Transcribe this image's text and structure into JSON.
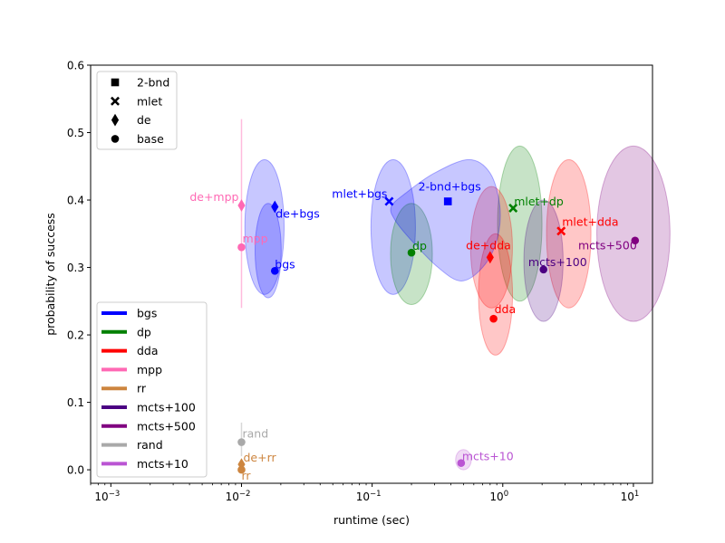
{
  "chart_data": {
    "type": "scatter",
    "title": "",
    "xlabel": "runtime (sec)",
    "ylabel": "probability of success",
    "xscale": "log",
    "xlim": [
      0.0007,
      14
    ],
    "ylim": [
      -0.02,
      0.6
    ],
    "xticks": [
      {
        "value": 0.001,
        "label": "10",
        "exp": "−3"
      },
      {
        "value": 0.01,
        "label": "10",
        "exp": "−2"
      },
      {
        "value": 0.1,
        "label": "10",
        "exp": "−1"
      },
      {
        "value": 1,
        "label": "10",
        "exp": "0"
      },
      {
        "value": 10,
        "label": "10",
        "exp": "1"
      }
    ],
    "yticks": [
      {
        "value": 0.0,
        "label": "0.0"
      },
      {
        "value": 0.1,
        "label": "0.1"
      },
      {
        "value": 0.2,
        "label": "0.2"
      },
      {
        "value": 0.3,
        "label": "0.3"
      },
      {
        "value": 0.4,
        "label": "0.4"
      },
      {
        "value": 0.5,
        "label": "0.5"
      },
      {
        "value": 0.6,
        "label": "0.6"
      }
    ],
    "marker_legend": {
      "placement": "top-left",
      "items": [
        {
          "marker": "square",
          "label": "2-bnd"
        },
        {
          "marker": "x",
          "label": "mlet"
        },
        {
          "marker": "diamond",
          "label": "de"
        },
        {
          "marker": "circle",
          "label": "base"
        }
      ]
    },
    "color_legend": {
      "placement": "lower-left",
      "items": [
        {
          "label": "bgs",
          "color": "#0000ff"
        },
        {
          "label": "dp",
          "color": "#008000"
        },
        {
          "label": "dda",
          "color": "#ff0000"
        },
        {
          "label": "mpp",
          "color": "#ff69b4"
        },
        {
          "label": "rr",
          "color": "#cd853f"
        },
        {
          "label": "mcts+100",
          "color": "#4b0082"
        },
        {
          "label": "mcts+500",
          "color": "#800080"
        },
        {
          "label": "rand",
          "color": "#a9a9a9"
        },
        {
          "label": "mcts+10",
          "color": "#ba55d3"
        }
      ]
    },
    "regions": [
      {
        "group": "bgs",
        "color": "#0000ff",
        "cx": 0.015,
        "cy": 0.36,
        "rx": 0.15,
        "ry": 0.1
      },
      {
        "group": "bgs",
        "color": "#0000ff",
        "cx": 0.016,
        "cy": 0.325,
        "rx": 0.1,
        "ry": 0.07
      },
      {
        "group": "bgs",
        "color": "#0000ff",
        "cx": 0.145,
        "cy": 0.36,
        "rx": 0.17,
        "ry": 0.1
      },
      {
        "group": "dp",
        "color": "#008000",
        "cx": 0.2,
        "cy": 0.32,
        "rx": 0.16,
        "ry": 0.075
      },
      {
        "group": "dp",
        "color": "#008000",
        "cx": 1.35,
        "cy": 0.365,
        "rx": 0.17,
        "ry": 0.115
      },
      {
        "group": "dda",
        "color": "#ff0000",
        "cx": 0.82,
        "cy": 0.33,
        "rx": 0.16,
        "ry": 0.09
      },
      {
        "group": "dda",
        "color": "#ff0000",
        "cx": 0.88,
        "cy": 0.26,
        "rx": 0.13,
        "ry": 0.09
      },
      {
        "group": "dda",
        "color": "#ff0000",
        "cx": 3.2,
        "cy": 0.35,
        "rx": 0.17,
        "ry": 0.11
      },
      {
        "group": "mcts+100",
        "color": "#4b0082",
        "cx": 2.05,
        "cy": 0.31,
        "rx": 0.15,
        "ry": 0.09
      },
      {
        "group": "mcts+500",
        "color": "#800080",
        "cx": 10.0,
        "cy": 0.35,
        "rx": 0.28,
        "ry": 0.13
      },
      {
        "group": "mcts+10",
        "color": "#ba55d3",
        "cx": 0.5,
        "cy": 0.015,
        "rx": 0.06,
        "ry": 0.015
      }
    ],
    "blob": {
      "group": "bgs",
      "color": "#0000ff",
      "points": [
        [
          0.14,
          0.39
        ],
        [
          0.18,
          0.41
        ],
        [
          0.3,
          0.44
        ],
        [
          0.55,
          0.46
        ],
        [
          0.8,
          0.44
        ],
        [
          0.95,
          0.39
        ],
        [
          0.9,
          0.34
        ],
        [
          0.7,
          0.3
        ],
        [
          0.48,
          0.28
        ],
        [
          0.32,
          0.3
        ],
        [
          0.2,
          0.34
        ],
        [
          0.15,
          0.37
        ]
      ]
    },
    "errorbars": [
      {
        "x": 0.01,
        "ylow": 0.24,
        "yhigh": 0.52,
        "color": "#ff69b4"
      },
      {
        "x": 0.01,
        "ylow": 0.02,
        "yhigh": 0.07,
        "color": "#a9a9a9"
      }
    ],
    "points": [
      {
        "label": "bgs",
        "x": 0.018,
        "y": 0.295,
        "marker": "circle",
        "color": "#0000ff",
        "label_anchor": "start",
        "label_dx": 0,
        "label_dy": -3
      },
      {
        "label": "de+bgs",
        "x": 0.018,
        "y": 0.39,
        "marker": "diamond",
        "color": "#0000ff",
        "label_anchor": "start",
        "label_dx": 1,
        "label_dy": 12
      },
      {
        "label": "mlet+bgs",
        "x": 0.135,
        "y": 0.398,
        "marker": "x",
        "color": "#0000ff",
        "label_anchor": "end",
        "label_dx": -2,
        "label_dy": -4
      },
      {
        "label": "2-bnd+bgs",
        "x": 0.38,
        "y": 0.398,
        "marker": "square",
        "color": "#0000ff",
        "label_anchor": "middle",
        "label_dx": 2,
        "label_dy": -12
      },
      {
        "label": "dp",
        "x": 0.2,
        "y": 0.322,
        "marker": "circle",
        "color": "#008000",
        "label_anchor": "start",
        "label_dx": 1,
        "label_dy": -3
      },
      {
        "label": "mlet+dp",
        "x": 1.2,
        "y": 0.388,
        "marker": "x",
        "color": "#008000",
        "label_anchor": "start",
        "label_dx": 1,
        "label_dy": -3
      },
      {
        "label": "de+dda",
        "x": 0.8,
        "y": 0.315,
        "marker": "diamond",
        "color": "#ff0000",
        "label_anchor": "end",
        "label_dx": 23,
        "label_dy": -9
      },
      {
        "label": "dda",
        "x": 0.85,
        "y": 0.224,
        "marker": "circle",
        "color": "#ff0000",
        "label_anchor": "start",
        "label_dx": 1,
        "label_dy": -6
      },
      {
        "label": "mlet+dda",
        "x": 2.8,
        "y": 0.354,
        "marker": "x",
        "color": "#ff0000",
        "label_anchor": "start",
        "label_dx": 1,
        "label_dy": -6
      },
      {
        "label": "mpp",
        "x": 0.01,
        "y": 0.33,
        "marker": "circle",
        "color": "#ff69b4",
        "label_anchor": "start",
        "label_dx": 1,
        "label_dy": -5
      },
      {
        "label": "de+mpp",
        "x": 0.01,
        "y": 0.392,
        "marker": "diamond",
        "color": "#ff69b4",
        "label_anchor": "end",
        "label_dx": -3,
        "label_dy": -5
      },
      {
        "label": "mcts+100",
        "x": 2.05,
        "y": 0.297,
        "marker": "circle",
        "color": "#4b0082",
        "label_anchor": "end",
        "label_dx": 48,
        "label_dy": -4
      },
      {
        "label": "mcts+500",
        "x": 10.3,
        "y": 0.34,
        "marker": "circle",
        "color": "#800080",
        "label_anchor": "end",
        "label_dx": 2,
        "label_dy": 10
      },
      {
        "label": "rand",
        "x": 0.01,
        "y": 0.041,
        "marker": "circle",
        "color": "#a9a9a9",
        "label_anchor": "start",
        "label_dx": 1,
        "label_dy": -5
      },
      {
        "label": "de+rr",
        "x": 0.01,
        "y": 0.008,
        "marker": "diamond",
        "color": "#cd853f",
        "label_anchor": "start",
        "label_dx": 2,
        "label_dy": -3
      },
      {
        "label": "rr",
        "x": 0.01,
        "y": 0.0,
        "marker": "circle",
        "color": "#cd853f",
        "label_anchor": "start",
        "label_dx": 0,
        "label_dy": 11
      },
      {
        "label": "mcts+10",
        "x": 0.48,
        "y": 0.01,
        "marker": "circle",
        "color": "#ba55d3",
        "label_anchor": "start",
        "label_dx": 1,
        "label_dy": -3
      }
    ]
  }
}
